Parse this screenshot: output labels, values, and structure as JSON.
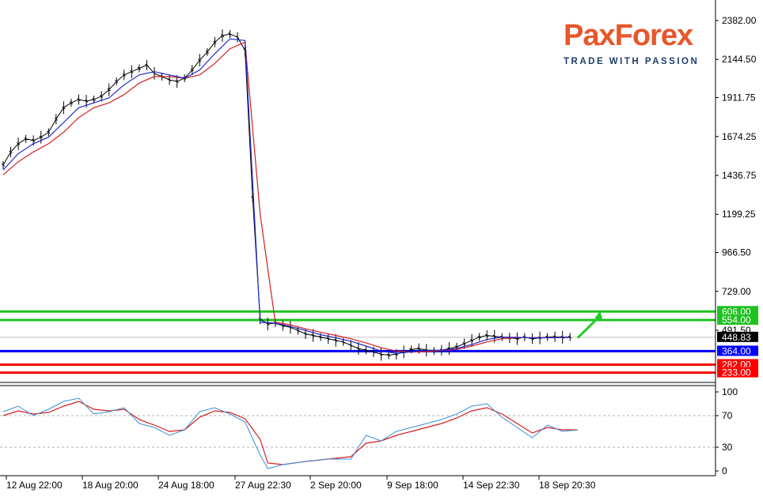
{
  "brand": {
    "name": "PaxForex",
    "name_part1": "Pax",
    "name_part2": "Forex",
    "tagline": "TRADE WITH PASSION"
  },
  "colors": {
    "background": "#ffffff",
    "price_bars": "#000000",
    "ma_fast": "#1e28c8",
    "ma_slow": "#d81e1e",
    "support_line": "#0000ff",
    "resistance_lines": "#1fc11f",
    "target_lines": "#ff0000",
    "arrow": "#22cc22",
    "oscillator_fast": "#3a8fd8",
    "oscillator_slow": "#d81e1e",
    "brand_orange": "#e8562a",
    "brand_navy": "#1d3f6e"
  },
  "chart_data": [
    {
      "type": "line",
      "series_kind": "price with moving averages",
      "ylim": [
        0,
        2500
      ],
      "y_ticks": [
        "2382.00",
        "2144.50",
        "1911.75",
        "1674.25",
        "1436.75",
        "1199.25",
        "966.50",
        "729.00",
        "491.50"
      ],
      "y_tick_values": [
        2382.0,
        2144.5,
        1911.75,
        1674.25,
        1436.75,
        1199.25,
        966.5,
        729.0,
        491.5
      ],
      "current_price": "448.83",
      "current_price_value": 448.83,
      "x_ticks": [
        "12 Aug 22:00",
        "18 Aug 20:00",
        "24 Aug 18:00",
        "27 Aug 22:30",
        "2 Sep 20:00",
        "9 Sep 18:00",
        "14 Sep 22:30",
        "18 Sep 20:30"
      ],
      "x_index_range": [
        0,
        100
      ],
      "x_tick_index": [
        7,
        20,
        33,
        46,
        59,
        72,
        85,
        98
      ],
      "price": [
        [
          0,
          1500
        ],
        [
          1,
          1580
        ],
        [
          2,
          1630
        ],
        [
          3,
          1660
        ],
        [
          4,
          1650
        ],
        [
          5,
          1670
        ],
        [
          6,
          1700
        ],
        [
          7,
          1780
        ],
        [
          8,
          1850
        ],
        [
          9,
          1880
        ],
        [
          10,
          1900
        ],
        [
          11,
          1890
        ],
        [
          12,
          1900
        ],
        [
          13,
          1920
        ],
        [
          14,
          1960
        ],
        [
          15,
          2010
        ],
        [
          16,
          2050
        ],
        [
          17,
          2070
        ],
        [
          18,
          2090
        ],
        [
          19,
          2110
        ],
        [
          20,
          2060
        ],
        [
          21,
          2040
        ],
        [
          22,
          2020
        ],
        [
          23,
          2010
        ],
        [
          24,
          2030
        ],
        [
          25,
          2080
        ],
        [
          26,
          2140
        ],
        [
          27,
          2190
        ],
        [
          28,
          2250
        ],
        [
          29,
          2290
        ],
        [
          30,
          2300
        ],
        [
          31,
          2280
        ],
        [
          32,
          2200
        ],
        [
          33,
          1300
        ],
        [
          34,
          560
        ],
        [
          35,
          530
        ],
        [
          36,
          535
        ],
        [
          37,
          520
        ],
        [
          38,
          510
        ],
        [
          39,
          490
        ],
        [
          40,
          470
        ],
        [
          41,
          460
        ],
        [
          42,
          450
        ],
        [
          43,
          440
        ],
        [
          44,
          430
        ],
        [
          45,
          420
        ],
        [
          46,
          400
        ],
        [
          47,
          380
        ],
        [
          48,
          370
        ],
        [
          49,
          360
        ],
        [
          50,
          345
        ],
        [
          51,
          340
        ],
        [
          52,
          345
        ],
        [
          53,
          360
        ],
        [
          54,
          375
        ],
        [
          55,
          380
        ],
        [
          56,
          370
        ],
        [
          57,
          365
        ],
        [
          58,
          370
        ],
        [
          59,
          380
        ],
        [
          60,
          390
        ],
        [
          61,
          410
        ],
        [
          62,
          430
        ],
        [
          63,
          450
        ],
        [
          64,
          460
        ],
        [
          65,
          455
        ],
        [
          66,
          450
        ],
        [
          67,
          445
        ],
        [
          68,
          440
        ],
        [
          69,
          450
        ],
        [
          70,
          440
        ],
        [
          71,
          445
        ],
        [
          72,
          450
        ],
        [
          73,
          452
        ],
        [
          74,
          449
        ],
        [
          75,
          451
        ]
      ],
      "ma_fast": [
        [
          0,
          1470
        ],
        [
          2,
          1570
        ],
        [
          4,
          1630
        ],
        [
          6,
          1670
        ],
        [
          8,
          1760
        ],
        [
          10,
          1850
        ],
        [
          12,
          1880
        ],
        [
          14,
          1910
        ],
        [
          16,
          1990
        ],
        [
          18,
          2050
        ],
        [
          20,
          2070
        ],
        [
          22,
          2050
        ],
        [
          24,
          2030
        ],
        [
          26,
          2080
        ],
        [
          28,
          2180
        ],
        [
          30,
          2270
        ],
        [
          32,
          2260
        ],
        [
          34,
          540
        ],
        [
          36,
          535
        ],
        [
          38,
          515
        ],
        [
          40,
          490
        ],
        [
          42,
          465
        ],
        [
          44,
          445
        ],
        [
          46,
          425
        ],
        [
          48,
          395
        ],
        [
          50,
          365
        ],
        [
          52,
          350
        ],
        [
          54,
          360
        ],
        [
          56,
          370
        ],
        [
          58,
          370
        ],
        [
          60,
          380
        ],
        [
          62,
          405
        ],
        [
          64,
          435
        ],
        [
          66,
          450
        ],
        [
          68,
          448
        ],
        [
          70,
          445
        ],
        [
          72,
          446
        ],
        [
          75,
          449
        ]
      ],
      "ma_slow": [
        [
          0,
          1440
        ],
        [
          2,
          1520
        ],
        [
          4,
          1580
        ],
        [
          6,
          1630
        ],
        [
          8,
          1700
        ],
        [
          10,
          1790
        ],
        [
          12,
          1850
        ],
        [
          14,
          1880
        ],
        [
          16,
          1930
        ],
        [
          18,
          2000
        ],
        [
          20,
          2040
        ],
        [
          22,
          2040
        ],
        [
          24,
          2030
        ],
        [
          26,
          2050
        ],
        [
          28,
          2120
        ],
        [
          30,
          2210
        ],
        [
          32,
          2250
        ],
        [
          34,
          1200
        ],
        [
          36,
          540
        ],
        [
          38,
          525
        ],
        [
          40,
          500
        ],
        [
          42,
          480
        ],
        [
          44,
          460
        ],
        [
          46,
          440
        ],
        [
          48,
          415
        ],
        [
          50,
          385
        ],
        [
          52,
          365
        ],
        [
          54,
          358
        ],
        [
          56,
          362
        ],
        [
          58,
          368
        ],
        [
          60,
          375
        ],
        [
          62,
          395
        ],
        [
          64,
          420
        ],
        [
          66,
          440
        ],
        [
          68,
          446
        ],
        [
          70,
          446
        ],
        [
          72,
          446
        ],
        [
          75,
          447
        ]
      ],
      "levels": [
        {
          "label": "606.00",
          "value": 606.0,
          "color": "#1fc11f"
        },
        {
          "label": "554.00",
          "value": 554.0,
          "color": "#1fc11f"
        },
        {
          "label": "364.00",
          "value": 364.0,
          "color": "#0000ff"
        },
        {
          "label": "282.00",
          "value": 282.0,
          "color": "#ff0000"
        },
        {
          "label": "233.00",
          "value": 233.0,
          "color": "#ff0000"
        }
      ],
      "arrow": {
        "from": [
          76,
          445
        ],
        "to": [
          79,
          610
        ]
      }
    },
    {
      "type": "line",
      "series_kind": "oscillator",
      "ylim": [
        0,
        100
      ],
      "y_ticks": [
        "100",
        "70",
        "30",
        "0"
      ],
      "y_tick_values": [
        100,
        70,
        30,
        0
      ],
      "fast": [
        [
          0,
          75
        ],
        [
          2,
          82
        ],
        [
          4,
          70
        ],
        [
          6,
          78
        ],
        [
          8,
          88
        ],
        [
          10,
          92
        ],
        [
          12,
          72
        ],
        [
          14,
          75
        ],
        [
          16,
          80
        ],
        [
          18,
          60
        ],
        [
          20,
          55
        ],
        [
          22,
          45
        ],
        [
          24,
          52
        ],
        [
          26,
          75
        ],
        [
          28,
          80
        ],
        [
          30,
          72
        ],
        [
          32,
          62
        ],
        [
          34,
          20
        ],
        [
          35,
          3
        ],
        [
          37,
          8
        ],
        [
          40,
          12
        ],
        [
          43,
          15
        ],
        [
          46,
          15
        ],
        [
          48,
          45
        ],
        [
          50,
          38
        ],
        [
          52,
          50
        ],
        [
          54,
          55
        ],
        [
          56,
          60
        ],
        [
          58,
          65
        ],
        [
          60,
          72
        ],
        [
          62,
          82
        ],
        [
          64,
          85
        ],
        [
          66,
          68
        ],
        [
          68,
          55
        ],
        [
          70,
          42
        ],
        [
          72,
          58
        ],
        [
          74,
          50
        ],
        [
          76,
          52
        ]
      ],
      "slow": [
        [
          0,
          70
        ],
        [
          2,
          76
        ],
        [
          4,
          72
        ],
        [
          6,
          74
        ],
        [
          8,
          82
        ],
        [
          10,
          88
        ],
        [
          12,
          78
        ],
        [
          14,
          76
        ],
        [
          16,
          78
        ],
        [
          18,
          65
        ],
        [
          20,
          58
        ],
        [
          22,
          50
        ],
        [
          24,
          52
        ],
        [
          26,
          68
        ],
        [
          28,
          76
        ],
        [
          30,
          74
        ],
        [
          32,
          66
        ],
        [
          34,
          40
        ],
        [
          35,
          10
        ],
        [
          37,
          8
        ],
        [
          40,
          12
        ],
        [
          43,
          15
        ],
        [
          46,
          18
        ],
        [
          48,
          35
        ],
        [
          50,
          38
        ],
        [
          52,
          45
        ],
        [
          54,
          50
        ],
        [
          56,
          55
        ],
        [
          58,
          60
        ],
        [
          60,
          67
        ],
        [
          62,
          76
        ],
        [
          64,
          80
        ],
        [
          66,
          72
        ],
        [
          68,
          60
        ],
        [
          70,
          48
        ],
        [
          72,
          55
        ],
        [
          74,
          52
        ],
        [
          76,
          52
        ]
      ]
    }
  ]
}
